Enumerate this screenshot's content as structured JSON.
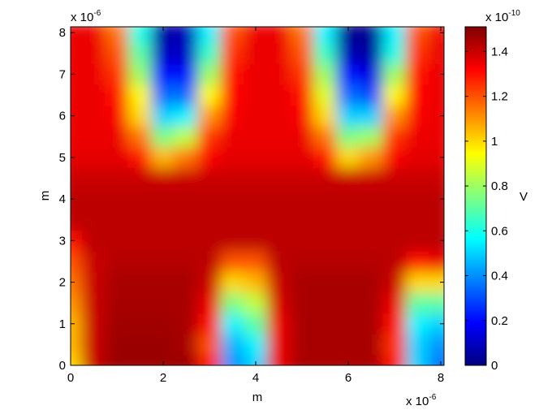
{
  "chart_data": {
    "type": "heatmap",
    "xlabel": "m",
    "ylabel": "m",
    "x_exponent": {
      "base": "x 10",
      "power": "-6"
    },
    "y_exponent": {
      "base": "x 10",
      "power": "-6"
    },
    "xlim": [
      0,
      8.07
    ],
    "ylim": [
      0,
      8.14
    ],
    "xticks": [
      0,
      2,
      4,
      6,
      8
    ],
    "yticks": [
      0,
      1,
      2,
      3,
      4,
      5,
      6,
      7,
      8
    ],
    "x": [
      0,
      0.5,
      1,
      1.5,
      2,
      2.5,
      3,
      3.5,
      4,
      4.5,
      5,
      5.5,
      6,
      6.5,
      7,
      7.5,
      8
    ],
    "y": [
      0,
      0.5,
      1,
      1.5,
      2,
      2.5,
      3,
      3.5,
      4,
      4.5,
      5,
      5.5,
      6,
      6.5,
      7,
      7.5,
      8
    ],
    "z": [
      [
        1.0,
        1.4,
        1.47,
        1.47,
        1.47,
        1.47,
        1.3,
        0.4,
        0.5,
        1.35,
        1.45,
        1.45,
        1.45,
        1.45,
        1.3,
        0.5,
        0.35
      ],
      [
        1.05,
        1.4,
        1.47,
        1.47,
        1.47,
        1.45,
        1.2,
        0.45,
        0.55,
        1.35,
        1.45,
        1.45,
        1.45,
        1.45,
        1.25,
        0.5,
        0.4
      ],
      [
        1.05,
        1.4,
        1.46,
        1.46,
        1.46,
        1.45,
        1.3,
        0.55,
        0.7,
        1.35,
        1.45,
        1.45,
        1.45,
        1.45,
        1.3,
        0.55,
        0.5
      ],
      [
        1.1,
        1.4,
        1.45,
        1.45,
        1.45,
        1.45,
        1.35,
        0.75,
        0.85,
        1.38,
        1.45,
        1.45,
        1.45,
        1.45,
        1.35,
        0.7,
        0.7
      ],
      [
        1.15,
        1.4,
        1.45,
        1.45,
        1.45,
        1.45,
        1.4,
        1.0,
        1.05,
        1.4,
        1.45,
        1.45,
        1.45,
        1.45,
        1.4,
        1.0,
        1.0
      ],
      [
        1.2,
        1.4,
        1.43,
        1.43,
        1.43,
        1.43,
        1.42,
        1.2,
        1.2,
        1.42,
        1.43,
        1.43,
        1.43,
        1.43,
        1.42,
        1.3,
        1.35
      ],
      [
        1.3,
        1.42,
        1.42,
        1.42,
        1.42,
        1.42,
        1.42,
        1.42,
        1.42,
        1.42,
        1.42,
        1.42,
        1.42,
        1.42,
        1.42,
        1.42,
        1.42
      ],
      [
        1.42,
        1.42,
        1.42,
        1.42,
        1.42,
        1.42,
        1.42,
        1.42,
        1.42,
        1.42,
        1.42,
        1.42,
        1.42,
        1.42,
        1.42,
        1.42,
        1.42
      ],
      [
        1.42,
        1.42,
        1.42,
        1.42,
        1.42,
        1.42,
        1.42,
        1.42,
        1.42,
        1.42,
        1.42,
        1.42,
        1.42,
        1.42,
        1.42,
        1.42,
        1.42
      ],
      [
        1.4,
        1.4,
        1.4,
        1.4,
        1.4,
        1.4,
        1.4,
        1.4,
        1.4,
        1.4,
        1.4,
        1.4,
        1.4,
        1.4,
        1.4,
        1.4,
        1.4
      ],
      [
        1.36,
        1.36,
        1.36,
        1.3,
        1.05,
        1.15,
        1.33,
        1.36,
        1.36,
        1.36,
        1.36,
        1.3,
        1.0,
        1.1,
        1.33,
        1.36,
        1.36
      ],
      [
        1.35,
        1.35,
        1.35,
        1.15,
        0.75,
        0.85,
        1.25,
        1.35,
        1.35,
        1.35,
        1.35,
        1.15,
        0.75,
        0.8,
        1.25,
        1.35,
        1.35
      ],
      [
        1.35,
        1.35,
        1.33,
        1.0,
        0.5,
        0.55,
        1.1,
        1.33,
        1.35,
        1.35,
        1.33,
        1.0,
        0.5,
        0.5,
        1.1,
        1.33,
        1.35
      ],
      [
        1.35,
        1.35,
        1.3,
        0.95,
        0.35,
        0.35,
        0.95,
        1.32,
        1.35,
        1.35,
        1.3,
        0.9,
        0.35,
        0.3,
        0.95,
        1.32,
        1.35
      ],
      [
        1.35,
        1.35,
        1.25,
        0.8,
        0.2,
        0.2,
        0.8,
        1.3,
        1.35,
        1.35,
        1.25,
        0.8,
        0.2,
        0.15,
        0.8,
        1.3,
        1.35
      ],
      [
        1.35,
        1.35,
        1.2,
        0.7,
        0.1,
        0.1,
        0.65,
        1.25,
        1.35,
        1.35,
        1.2,
        0.65,
        0.08,
        0.05,
        0.6,
        1.25,
        1.35
      ],
      [
        1.35,
        1.35,
        1.15,
        0.6,
        0.05,
        0.08,
        0.55,
        1.2,
        1.35,
        1.35,
        1.15,
        0.55,
        0.02,
        0.03,
        0.55,
        1.2,
        1.35
      ]
    ],
    "colormap": "jet",
    "colorbar": {
      "label": "V",
      "exponent": {
        "base": "x 10",
        "power": "-10"
      },
      "clim": [
        0,
        1.51
      ],
      "ticks": [
        0,
        0.2,
        0.4,
        0.6,
        0.8,
        1,
        1.2,
        1.4
      ]
    }
  }
}
